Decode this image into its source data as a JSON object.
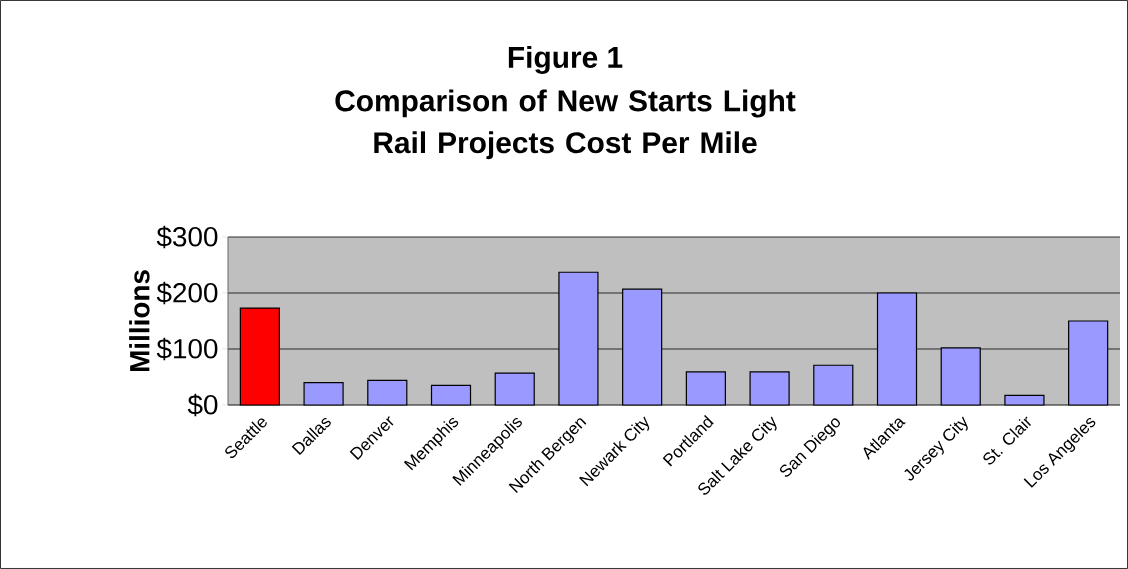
{
  "chart_data": {
    "type": "bar",
    "title": "Figure 1",
    "subtitle": "Comparison of New Starts Light Rail Projects Cost Per Mile",
    "ylabel": "Millions",
    "categories": [
      "Seattle",
      "Dallas",
      "Denver",
      "Memphis",
      "Minneapolis",
      "North Bergen",
      "Newark City",
      "Portland",
      "Salt Lake City",
      "San Diego",
      "Atlanta",
      "Jersey City",
      "St. Clair",
      "Los Angeles"
    ],
    "values": [
      173,
      40,
      44,
      35,
      57,
      237,
      207,
      59,
      59,
      71,
      200,
      102,
      17,
      150
    ],
    "colors": [
      "#ff0000",
      "#9999ff",
      "#9999ff",
      "#9999ff",
      "#9999ff",
      "#9999ff",
      "#9999ff",
      "#9999ff",
      "#9999ff",
      "#9999ff",
      "#9999ff",
      "#9999ff",
      "#9999ff",
      "#9999ff"
    ],
    "ylim": [
      0,
      300
    ],
    "yticks": [
      {
        "value": 0,
        "label": "$0"
      },
      {
        "value": 100,
        "label": "$100"
      },
      {
        "value": 200,
        "label": "$200"
      },
      {
        "value": 300,
        "label": "$300"
      }
    ],
    "grid": "y"
  }
}
